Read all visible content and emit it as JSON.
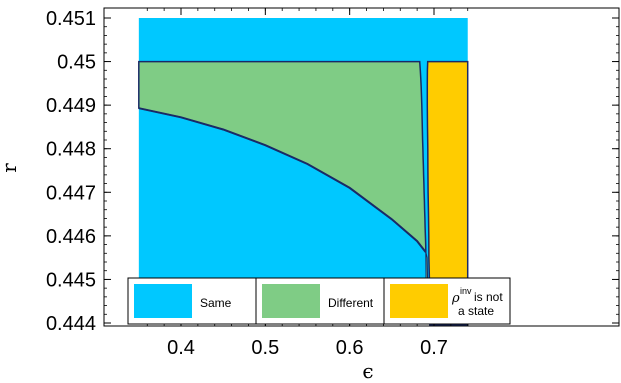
{
  "chart_data": {
    "type": "area",
    "xlabel": "ϵ",
    "ylabel": "r",
    "xlim": [
      0.35,
      0.74
    ],
    "ylim": [
      0.444,
      0.451
    ],
    "x_ticks": [
      0.4,
      0.5,
      0.6,
      0.7
    ],
    "x_tick_labels": [
      "0.4",
      "0.5",
      "0.6",
      "0.7"
    ],
    "y_ticks": [
      0.444,
      0.445,
      0.446,
      0.447,
      0.448,
      0.449,
      0.45,
      0.451
    ],
    "y_tick_labels": [
      "0.444",
      "0.445",
      "0.446",
      "0.447",
      "0.448",
      "0.449",
      "0.45",
      "0.451"
    ],
    "grid": false,
    "legend_position": "bottom-left",
    "colors": {
      "same": "#00c8ff",
      "different": "#7fcc85",
      "not_state": "#ffcc00",
      "boundary": "#1a2a66"
    },
    "series": [
      {
        "name": "Same",
        "description_region": "background / below curve"
      },
      {
        "name": "Different",
        "boundary_lower_curve": {
          "x": [
            0.35,
            0.4,
            0.45,
            0.5,
            0.55,
            0.6,
            0.65,
            0.68,
            0.69
          ],
          "y": [
            0.44893,
            0.44872,
            0.44844,
            0.44808,
            0.44765,
            0.4471,
            0.44638,
            0.44588,
            0.44563
          ]
        },
        "upper_y": 0.45,
        "right_edge": {
          "y": [
            0.45,
            0.4498,
            0.4496,
            0.4494,
            0.4492,
            0.449,
            0.4488,
            0.4486,
            0.4484,
            0.4482,
            0.448,
            0.4478,
            0.4476,
            0.4474,
            0.4472,
            0.447,
            0.4468,
            0.4466,
            0.4464,
            0.4462,
            0.446,
            0.4458,
            0.44563
          ],
          "x": [
            0.683,
            0.6838,
            0.6843,
            0.6848,
            0.6852,
            0.6855,
            0.6858,
            0.686,
            0.6862,
            0.6865,
            0.6868,
            0.6871,
            0.6874,
            0.6877,
            0.688,
            0.6883,
            0.6886,
            0.6889,
            0.6892,
            0.6895,
            0.6898,
            0.6901,
            0.6903
          ]
        }
      },
      {
        "name": "ρ^inv is not a state",
        "left_edge": {
          "y": [
            0.45,
            0.4498,
            0.4495,
            0.449,
            0.4485,
            0.448,
            0.4475,
            0.447,
            0.4465,
            0.446,
            0.4455,
            0.445,
            0.4445,
            0.44395
          ],
          "x": [
            0.6925,
            0.6922,
            0.692,
            0.6921,
            0.6923,
            0.6926,
            0.6928,
            0.693,
            0.6935,
            0.6938,
            0.694,
            0.6945,
            0.6948,
            0.695
          ]
        },
        "upper_y": 0.45
      }
    ],
    "legend": [
      {
        "label": "Same",
        "color": "#00c8ff"
      },
      {
        "label": "Different",
        "color": "#7fcc85"
      },
      {
        "label_rho": "ρ",
        "label_sup": "inv",
        "label_line1": " is not",
        "label_line2": "a state",
        "color": "#ffcc00"
      }
    ]
  }
}
